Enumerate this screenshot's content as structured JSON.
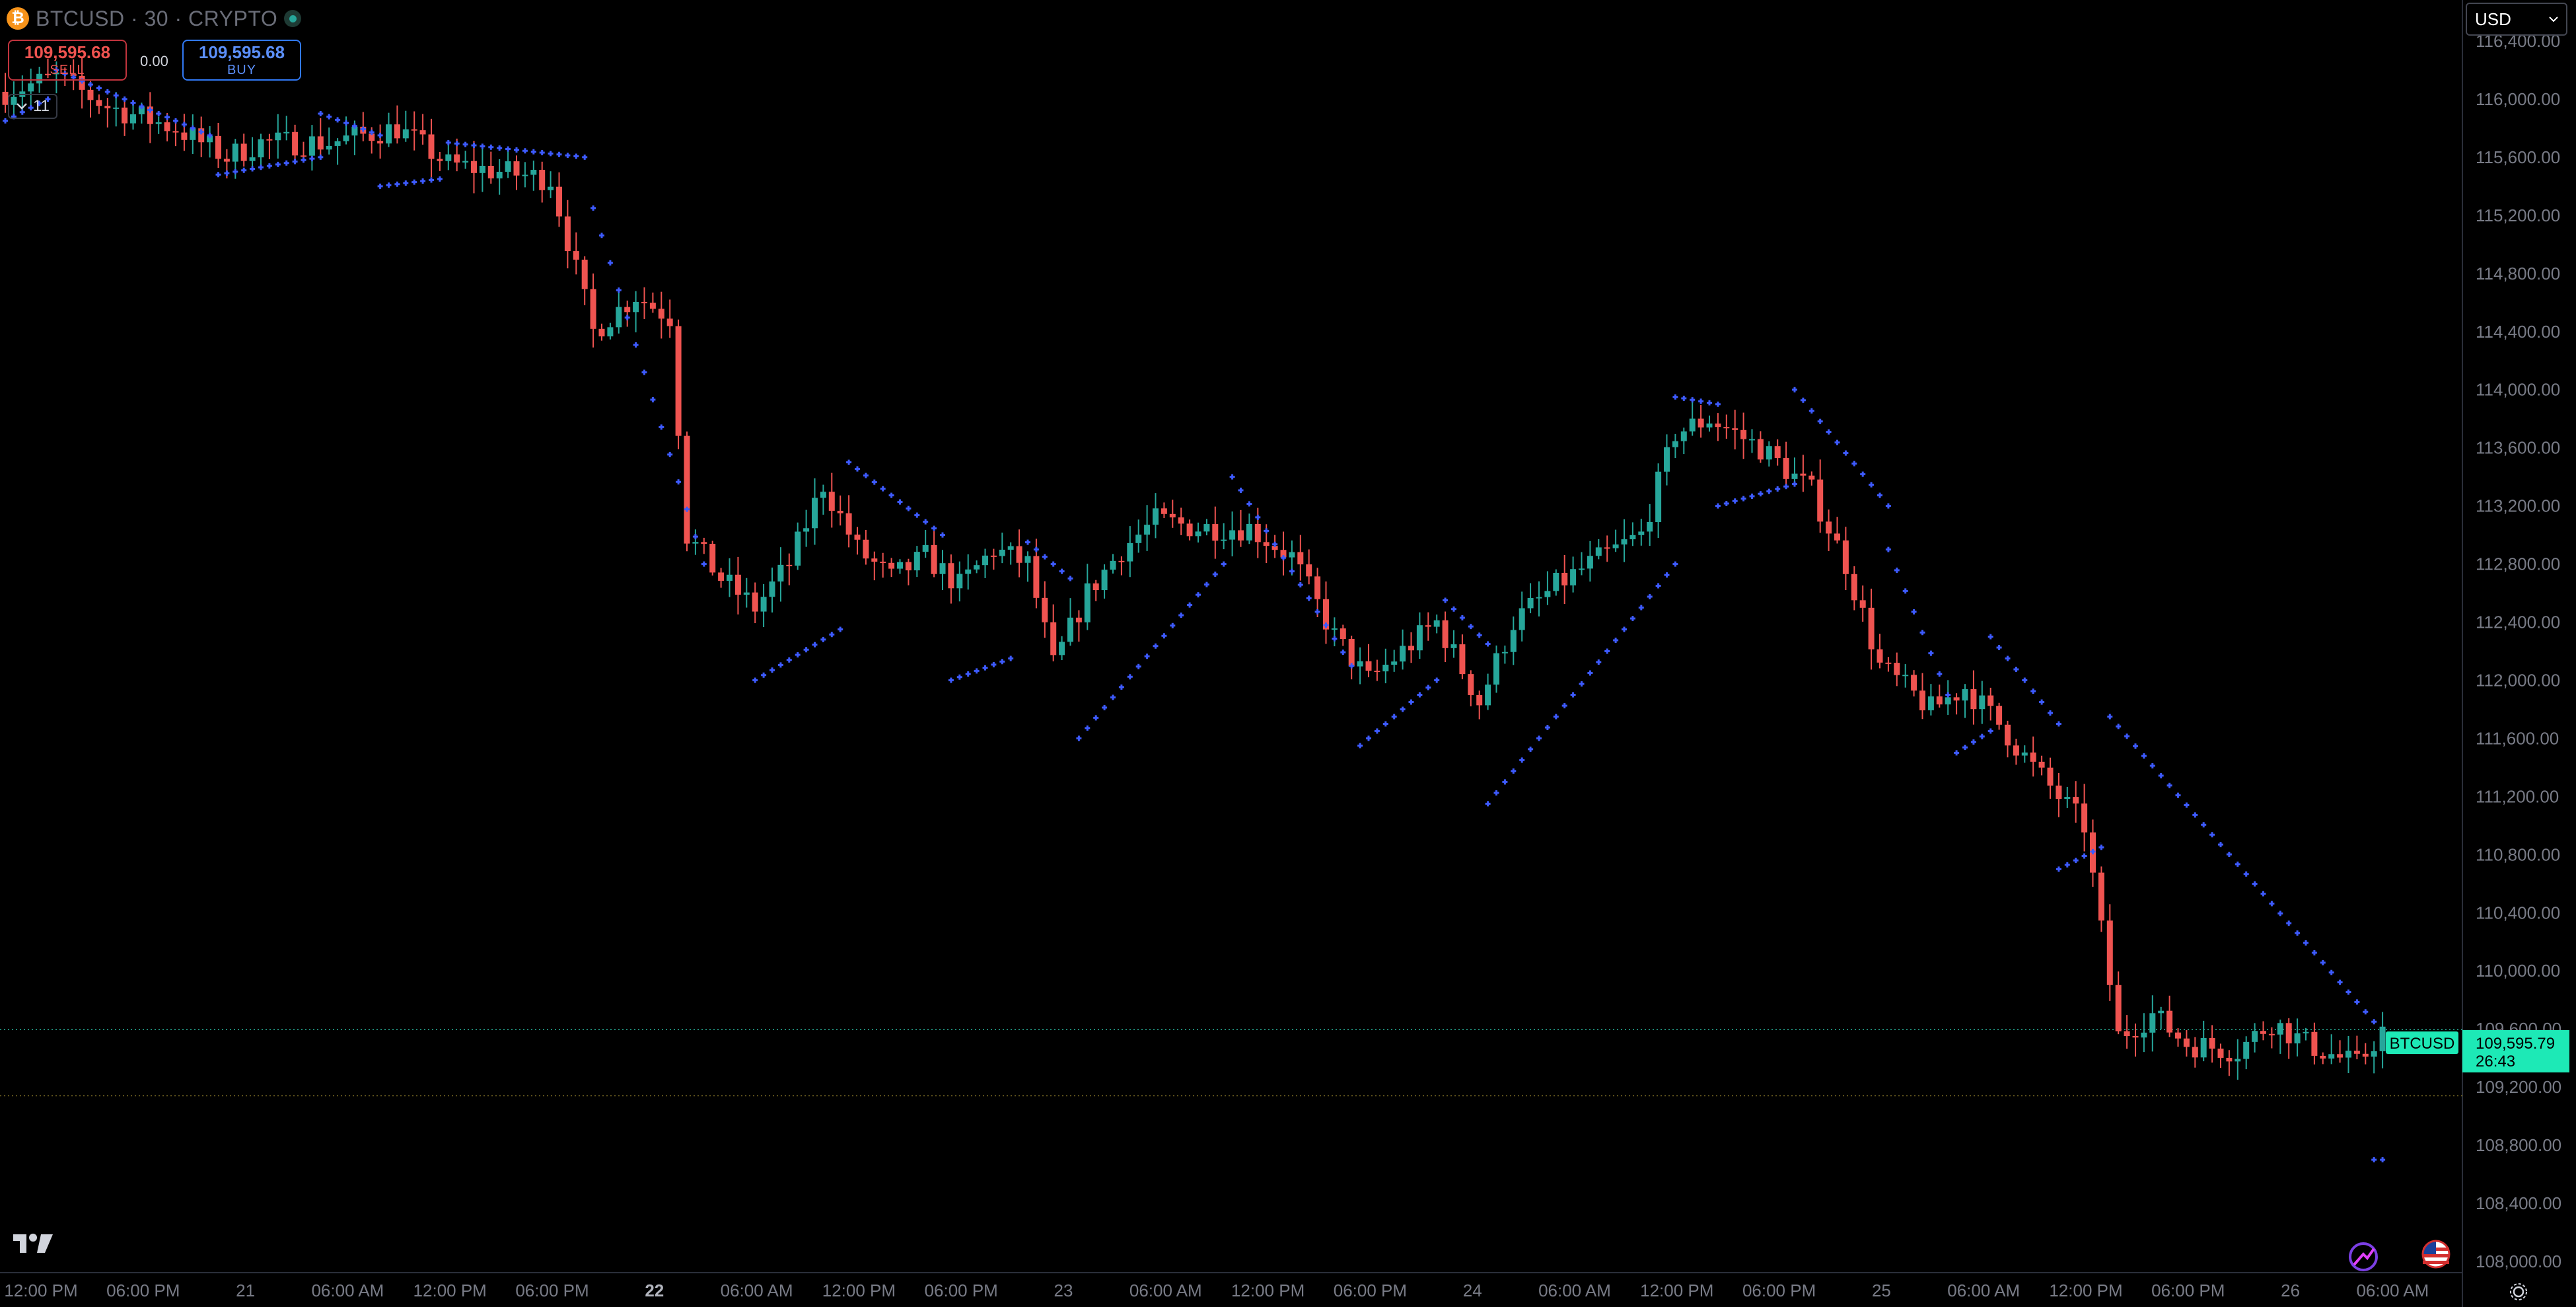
{
  "header": {
    "symbol_title": "BTCUSD · 30 · CRYPTO",
    "coin_icon": "bitcoin-icon",
    "sell": {
      "price": "109,595.68",
      "label": "SELL"
    },
    "buy": {
      "price": "109,595.68",
      "label": "BUY"
    },
    "spread": "0.00",
    "indicator_toggle_count": "11"
  },
  "currency_selector": {
    "value": "USD"
  },
  "last_price_label": {
    "symbol": "BTCUSD",
    "price": "109,595.79",
    "countdown": "26:43"
  },
  "colors": {
    "up": "#26a69a",
    "down": "#ef5350",
    "sar": "#3d5afe",
    "background": "#000000",
    "axis_text": "#787b86",
    "badge": "#1de9b6"
  },
  "icons": {
    "logo": "tradingview-logo",
    "flag": "us-flag-icon",
    "compare": "compare-icon",
    "settings": "settings-gear-icon"
  },
  "chart_data": {
    "type": "candlestick",
    "symbol": "BTCUSD",
    "interval": "30",
    "overlay": "parabolic-sar",
    "ylim": [
      108000,
      116800
    ],
    "grid": false,
    "y_ticks": [
      "108,000.00",
      "108,400.00",
      "108,800.00",
      "109,200.00",
      "109,600.00",
      "110,000.00",
      "110,400.00",
      "110,800.00",
      "111,200.00",
      "111,600.00",
      "112,000.00",
      "112,400.00",
      "112,800.00",
      "113,200.00",
      "113,600.00",
      "114,000.00",
      "114,400.00",
      "114,800.00",
      "115,200.00",
      "115,600.00",
      "116,000.00",
      "116,400.00"
    ],
    "x_ticks": [
      {
        "label": "12:00 PM",
        "bar": 0,
        "bold": false
      },
      {
        "label": "06:00 PM",
        "bar": 12,
        "bold": false
      },
      {
        "label": "21",
        "bar": 24,
        "bold": false
      },
      {
        "label": "06:00 AM",
        "bar": 36,
        "bold": false
      },
      {
        "label": "12:00 PM",
        "bar": 48,
        "bold": false
      },
      {
        "label": "06:00 PM",
        "bar": 60,
        "bold": false
      },
      {
        "label": "22",
        "bar": 72,
        "bold": true
      },
      {
        "label": "06:00 AM",
        "bar": 84,
        "bold": false
      },
      {
        "label": "12:00 PM",
        "bar": 96,
        "bold": false
      },
      {
        "label": "06:00 PM",
        "bar": 108,
        "bold": false
      },
      {
        "label": "23",
        "bar": 120,
        "bold": false
      },
      {
        "label": "06:00 AM",
        "bar": 132,
        "bold": false
      },
      {
        "label": "12:00 PM",
        "bar": 144,
        "bold": false
      },
      {
        "label": "06:00 PM",
        "bar": 156,
        "bold": false
      },
      {
        "label": "24",
        "bar": 168,
        "bold": false
      },
      {
        "label": "06:00 AM",
        "bar": 180,
        "bold": false
      },
      {
        "label": "12:00 PM",
        "bar": 192,
        "bold": false
      },
      {
        "label": "06:00 PM",
        "bar": 204,
        "bold": false
      },
      {
        "label": "25",
        "bar": 216,
        "bold": false
      },
      {
        "label": "06:00 AM",
        "bar": 228,
        "bold": false
      },
      {
        "label": "12:00 PM",
        "bar": 240,
        "bold": false
      },
      {
        "label": "06:00 PM",
        "bar": 252,
        "bold": false
      },
      {
        "label": "26",
        "bar": 264,
        "bold": false
      },
      {
        "label": "06:00 AM",
        "bar": 276,
        "bold": false
      }
    ],
    "last_price": 109595.79,
    "reference_line": 109140,
    "anchors": [
      [
        0,
        116050
      ],
      [
        6,
        116150
      ],
      [
        12,
        115950
      ],
      [
        20,
        115800
      ],
      [
        26,
        115600
      ],
      [
        30,
        115700
      ],
      [
        38,
        115700
      ],
      [
        46,
        115800
      ],
      [
        52,
        115550
      ],
      [
        58,
        115500
      ],
      [
        64,
        115450
      ],
      [
        69,
        114400
      ],
      [
        74,
        114650
      ],
      [
        78,
        114500
      ],
      [
        80,
        113000
      ],
      [
        84,
        112700
      ],
      [
        88,
        112500
      ],
      [
        92,
        112800
      ],
      [
        96,
        113350
      ],
      [
        100,
        112900
      ],
      [
        104,
        112700
      ],
      [
        108,
        112850
      ],
      [
        112,
        112650
      ],
      [
        116,
        112900
      ],
      [
        120,
        112800
      ],
      [
        123,
        112100
      ],
      [
        127,
        112600
      ],
      [
        131,
        112900
      ],
      [
        135,
        113100
      ],
      [
        140,
        113050
      ],
      [
        146,
        113050
      ],
      [
        151,
        112850
      ],
      [
        156,
        112300
      ],
      [
        160,
        112000
      ],
      [
        164,
        112200
      ],
      [
        168,
        112400
      ],
      [
        173,
        111850
      ],
      [
        177,
        112400
      ],
      [
        182,
        112650
      ],
      [
        186,
        112800
      ],
      [
        192,
        113000
      ],
      [
        196,
        113700
      ],
      [
        200,
        113800
      ],
      [
        206,
        113600
      ],
      [
        212,
        113300
      ],
      [
        216,
        112800
      ],
      [
        220,
        112100
      ],
      [
        226,
        111800
      ],
      [
        230,
        111950
      ],
      [
        234,
        111700
      ],
      [
        238,
        111400
      ],
      [
        244,
        111000
      ],
      [
        248,
        109550
      ],
      [
        252,
        109700
      ],
      [
        256,
        109500
      ],
      [
        262,
        109450
      ],
      [
        266,
        109650
      ],
      [
        270,
        109500
      ],
      [
        276,
        109350
      ],
      [
        279,
        109590
      ]
    ],
    "sar_segments": [
      {
        "start": 0,
        "end": 5,
        "from": 115850,
        "to": 116000
      },
      {
        "start": 6,
        "end": 24,
        "from": 116200,
        "to": 115750
      },
      {
        "start": 25,
        "end": 37,
        "from": 115480,
        "to": 115600
      },
      {
        "start": 37,
        "end": 44,
        "from": 115900,
        "to": 115750
      },
      {
        "start": 44,
        "end": 51,
        "from": 115400,
        "to": 115450
      },
      {
        "start": 52,
        "end": 68,
        "from": 115700,
        "to": 115600
      },
      {
        "start": 69,
        "end": 82,
        "from": 115250,
        "to": 112800
      },
      {
        "start": 88,
        "end": 98,
        "from": 112000,
        "to": 112350
      },
      {
        "start": 99,
        "end": 110,
        "from": 113500,
        "to": 113000
      },
      {
        "start": 111,
        "end": 118,
        "from": 112000,
        "to": 112150
      },
      {
        "start": 120,
        "end": 125,
        "from": 112950,
        "to": 112700
      },
      {
        "start": 126,
        "end": 143,
        "from": 111600,
        "to": 112800
      },
      {
        "start": 144,
        "end": 158,
        "from": 113400,
        "to": 112100
      },
      {
        "start": 159,
        "end": 168,
        "from": 111550,
        "to": 112000
      },
      {
        "start": 169,
        "end": 174,
        "from": 112550,
        "to": 112250
      },
      {
        "start": 174,
        "end": 196,
        "from": 111150,
        "to": 112800
      },
      {
        "start": 196,
        "end": 201,
        "from": 113950,
        "to": 113900
      },
      {
        "start": 201,
        "end": 210,
        "from": 113200,
        "to": 113350
      },
      {
        "start": 210,
        "end": 221,
        "from": 114000,
        "to": 113200
      },
      {
        "start": 221,
        "end": 228,
        "from": 112900,
        "to": 111900
      },
      {
        "start": 229,
        "end": 233,
        "from": 111500,
        "to": 111650
      },
      {
        "start": 233,
        "end": 241,
        "from": 112300,
        "to": 111700
      },
      {
        "start": 241,
        "end": 246,
        "from": 110700,
        "to": 110850
      },
      {
        "start": 247,
        "end": 278,
        "from": 111750,
        "to": 109650
      },
      {
        "start": 278,
        "end": 279,
        "from": 108700,
        "to": 108700
      }
    ]
  }
}
